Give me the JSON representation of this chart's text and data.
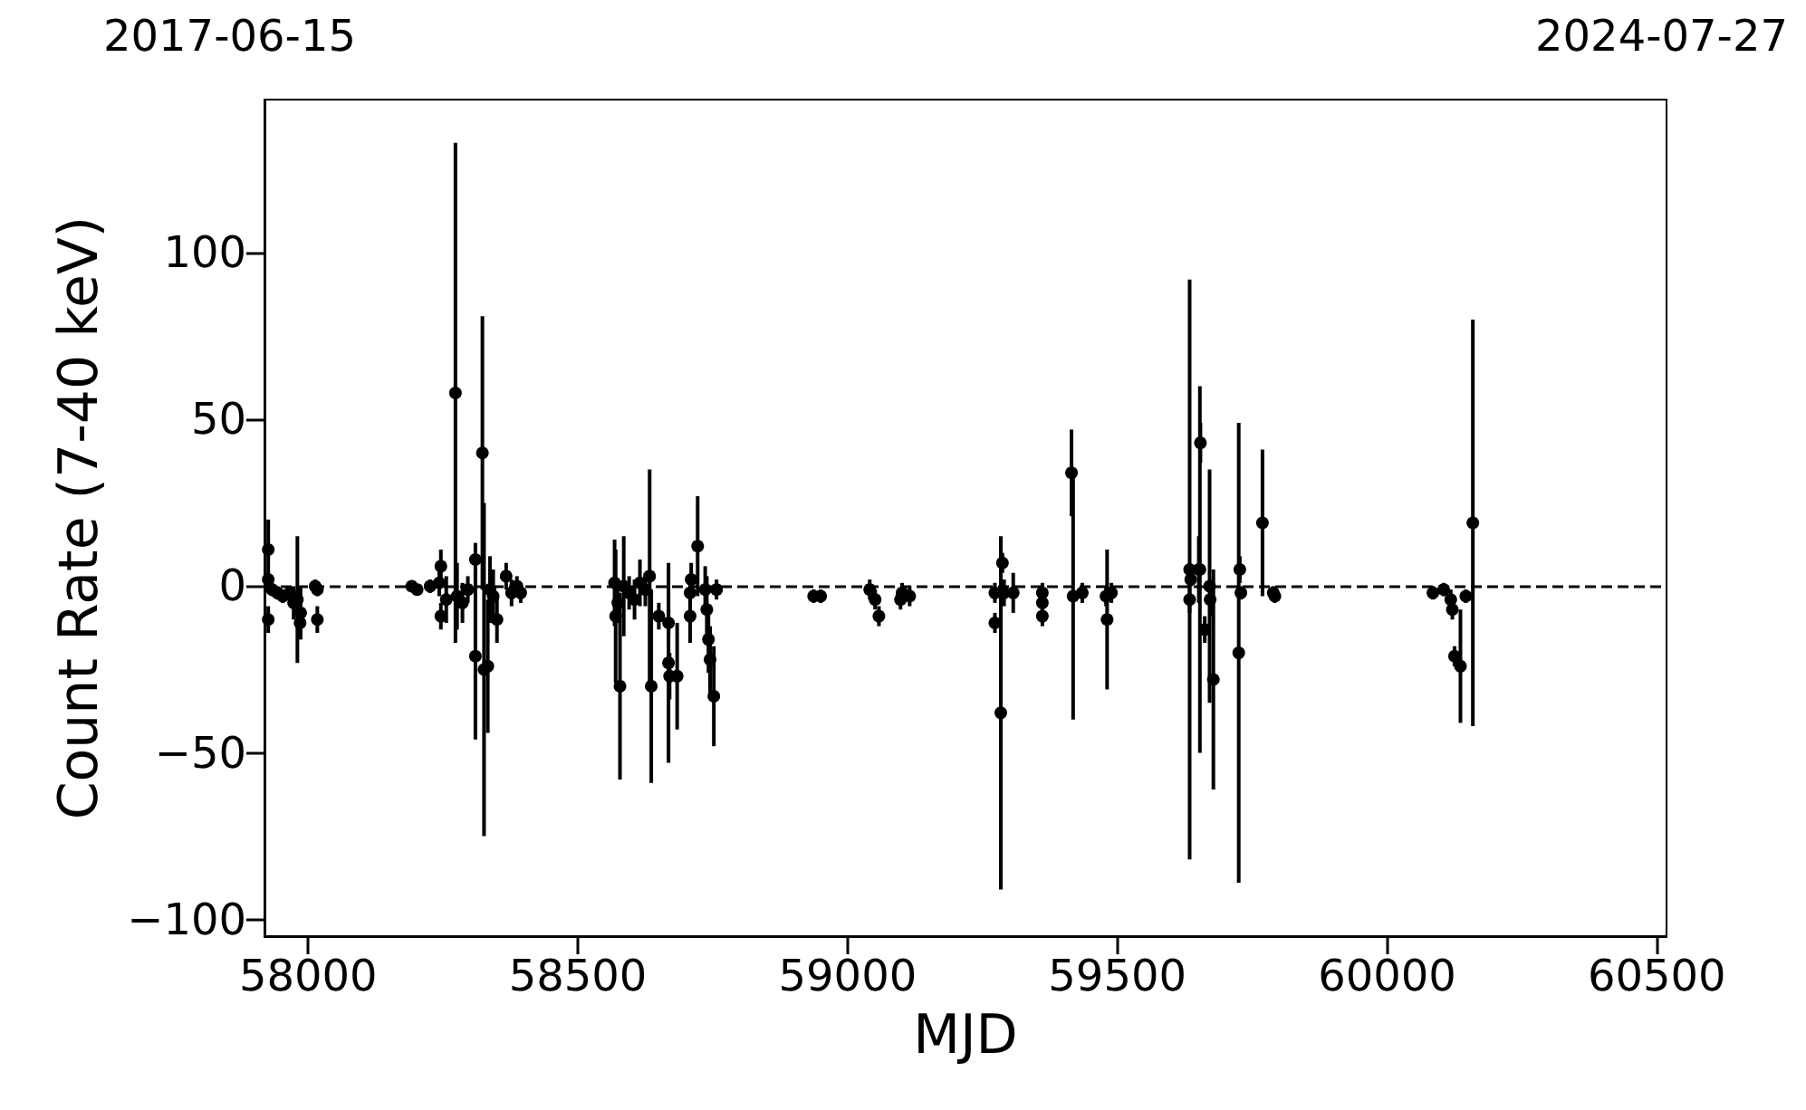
{
  "chart_data": {
    "type": "scatter",
    "xlabel": "MJD",
    "ylabel": "Count Rate (7-40 keV)",
    "xlim": [
      57919,
      60518
    ],
    "xticks": [
      58000,
      58500,
      59000,
      59500,
      60000,
      60500
    ],
    "annotations": [
      "2017-06-15",
      "2024-07-27"
    ],
    "ylim": [
      -105,
      146
    ],
    "yticks": [
      {
        "value": -100,
        "label": "−100"
      },
      {
        "value": -50,
        "label": "−50"
      },
      0,
      50,
      100
    ],
    "grid": false,
    "marker": "circle",
    "ref_lines": [
      {
        "axis": "y",
        "value": 0,
        "color": "#000000",
        "line_style": "dashed"
      }
    ],
    "series": [
      {
        "color": "#000000",
        "x": [
          57926,
          57926,
          57926,
          57933,
          57943,
          57953,
          57966,
          57973,
          57980,
          57985,
          57986,
          58017,
          58017,
          58013,
          58192,
          58202,
          58226,
          58243,
          58246,
          58246,
          58256,
          58273,
          58276,
          58286,
          58296,
          58310,
          58310,
          58323,
          58326,
          58333,
          58337,
          58343,
          58350,
          58367,
          58377,
          58387,
          58394,
          58568,
          58570,
          58574,
          58578,
          58585,
          58595,
          58605,
          58615,
          58625,
          58633,
          58636,
          58650,
          58668,
          58668,
          58670,
          58684,
          58708,
          58708,
          58710,
          58722,
          58736,
          58739,
          58742,
          58745,
          58752,
          58757,
          58937,
          58950,
          59041,
          59051,
          59058,
          59098,
          59101,
          59115,
          59273,
          59273,
          59287,
          59284,
          59290,
          59307,
          59361,
          59361,
          59361,
          59415,
          59418,
          59435,
          59479,
          59481,
          59489,
          59634,
          59634,
          59636,
          59651,
          59653,
          59654,
          59662,
          59671,
          59672,
          59678,
          59725,
          59727,
          59729,
          59769,
          59789,
          59792,
          60085,
          60105,
          60118,
          60121,
          60125,
          60136,
          60146,
          60159
        ],
        "values": [
          11,
          2,
          -10,
          -1,
          -2,
          -3,
          -2,
          -5,
          -4,
          -11,
          -8,
          -1,
          -10,
          0,
          0,
          -1,
          0,
          1,
          6,
          -9,
          -4,
          58,
          -3,
          -5,
          -1,
          8,
          -21,
          40,
          -25,
          -24,
          -1,
          -3,
          -10,
          3,
          -2,
          0,
          -2,
          1,
          -9,
          -5,
          -30,
          0,
          -2,
          -4,
          1,
          -1,
          3,
          -30,
          -9,
          -11,
          -23,
          -27,
          -27,
          -2,
          -9,
          2,
          12,
          -1,
          -7,
          -16,
          -22,
          -33,
          -1,
          -3,
          -3,
          -1,
          -4,
          -9,
          -4,
          -2,
          -3,
          -2,
          -11,
          7,
          -38,
          -2,
          -2,
          -2,
          -5,
          -9,
          34,
          -3,
          -2,
          -3,
          -10,
          -2,
          5,
          -4,
          2,
          5,
          5,
          43,
          -13,
          0,
          -4,
          -28,
          -20,
          5,
          -2,
          19,
          -2,
          -3,
          -2,
          -1,
          -4,
          -7,
          -21,
          -24,
          -3,
          19
        ],
        "errors": [
          9,
          2,
          4,
          2,
          2,
          2,
          2,
          5,
          19,
          3,
          8,
          2,
          4,
          2,
          1,
          1,
          2,
          4,
          5,
          4,
          7,
          75,
          10,
          6,
          4,
          5,
          25,
          41,
          50,
          20,
          10,
          8,
          7,
          4,
          4,
          3,
          3,
          13,
          20,
          6,
          28,
          15,
          5,
          6,
          7,
          5,
          32,
          29,
          4,
          4,
          30,
          7,
          16,
          3,
          8,
          5,
          15,
          7,
          10,
          10,
          10,
          15,
          3,
          2,
          2,
          3,
          3,
          3,
          3,
          3,
          3,
          3,
          3,
          3,
          53,
          4,
          6,
          3,
          3,
          3,
          13,
          37,
          3,
          3,
          21,
          3,
          87,
          4,
          2,
          10,
          55,
          6,
          4,
          35,
          5,
          33,
          69,
          4,
          2,
          22,
          2,
          2,
          2,
          2,
          3,
          3,
          3,
          17,
          2,
          61
        ]
      }
    ]
  }
}
